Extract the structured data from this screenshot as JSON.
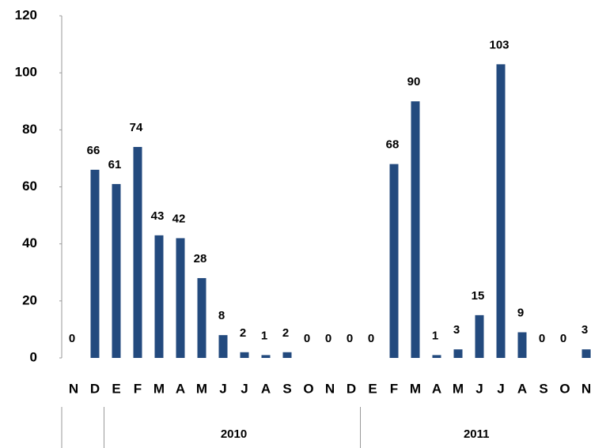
{
  "chart_data": {
    "type": "bar",
    "categories": [
      "N",
      "D",
      "E",
      "F",
      "M",
      "A",
      "M",
      "J",
      "J",
      "A",
      "S",
      "O",
      "N",
      "D",
      "E",
      "F",
      "M",
      "A",
      "M",
      "J",
      "J",
      "A",
      "S",
      "O",
      "N"
    ],
    "values": [
      0,
      66,
      61,
      74,
      43,
      42,
      28,
      8,
      2,
      1,
      2,
      0,
      0,
      0,
      0,
      68,
      90,
      1,
      3,
      15,
      103,
      9,
      0,
      0,
      3
    ],
    "color": "#234a7e",
    "ylim": [
      0,
      120
    ],
    "yticks": [
      0,
      20,
      40,
      60,
      80,
      100,
      120
    ],
    "grid": false,
    "groups": [
      {
        "label": null,
        "span": 2
      },
      {
        "label": "2010",
        "span": 12
      },
      {
        "label": "2011",
        "span": 11
      }
    ]
  }
}
